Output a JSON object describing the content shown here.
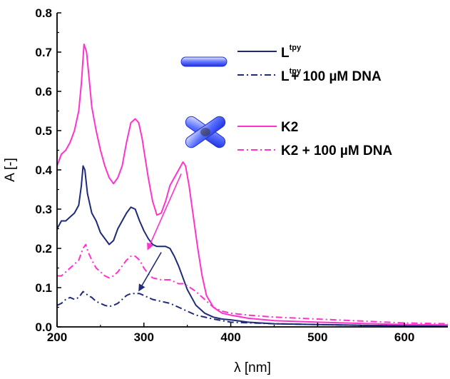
{
  "chart_data": {
    "type": "line",
    "xlabel": "λ [nm]",
    "ylabel": "A [-]",
    "xlim": [
      200,
      650
    ],
    "ylim": [
      0,
      0.8
    ],
    "xticks": [
      "200",
      "300",
      "400",
      "500",
      "600"
    ],
    "yticks": [
      "0.0",
      "0.1",
      "0.2",
      "0.3",
      "0.4",
      "0.5",
      "0.6",
      "0.7",
      "0.8"
    ],
    "grid": false,
    "legend_position": "top-right",
    "series": [
      {
        "name": "Ltpy",
        "name_base": "L",
        "name_sup": "tpy",
        "color": "#1f2a7a",
        "dash": "solid",
        "x": [
          200,
          205,
          210,
          215,
          220,
          225,
          228,
          230,
          232,
          235,
          240,
          245,
          250,
          260,
          265,
          270,
          275,
          280,
          285,
          290,
          295,
          300,
          305,
          310,
          315,
          320,
          325,
          330,
          335,
          340,
          345,
          350,
          360,
          370,
          380,
          390,
          400,
          420,
          450,
          500,
          550,
          600,
          650
        ],
        "y": [
          0.25,
          0.27,
          0.27,
          0.28,
          0.29,
          0.31,
          0.36,
          0.41,
          0.4,
          0.34,
          0.29,
          0.27,
          0.24,
          0.21,
          0.22,
          0.25,
          0.27,
          0.29,
          0.305,
          0.3,
          0.27,
          0.245,
          0.225,
          0.21,
          0.205,
          0.205,
          0.205,
          0.2,
          0.18,
          0.155,
          0.125,
          0.095,
          0.055,
          0.035,
          0.025,
          0.02,
          0.018,
          0.012,
          0.008,
          0.006,
          0.004,
          0.003,
          0.002
        ]
      },
      {
        "name": "Ltpy + 100 µM DNA",
        "name_base": "L",
        "name_sup": "tpy",
        "name_rest": "+ 100 µM DNA",
        "color": "#1f2a7a",
        "dash": "dashdot",
        "x": [
          200,
          205,
          210,
          215,
          220,
          225,
          230,
          233,
          236,
          240,
          245,
          250,
          255,
          260,
          265,
          270,
          275,
          280,
          285,
          290,
          295,
          300,
          305,
          310,
          320,
          330,
          340,
          350,
          360,
          380,
          400,
          450,
          500,
          550,
          600,
          650
        ],
        "y": [
          0.055,
          0.06,
          0.07,
          0.075,
          0.07,
          0.075,
          0.09,
          0.085,
          0.08,
          0.075,
          0.065,
          0.06,
          0.055,
          0.052,
          0.055,
          0.06,
          0.07,
          0.08,
          0.085,
          0.085,
          0.085,
          0.08,
          0.075,
          0.07,
          0.065,
          0.06,
          0.05,
          0.04,
          0.03,
          0.02,
          0.012,
          0.008,
          0.006,
          0.004,
          0.003,
          0.002
        ]
      },
      {
        "name": "K2",
        "color": "#ff33cc",
        "dash": "solid",
        "x": [
          200,
          205,
          210,
          215,
          220,
          225,
          228,
          231,
          234,
          237,
          240,
          245,
          250,
          255,
          260,
          265,
          270,
          275,
          280,
          285,
          290,
          294,
          298,
          300,
          305,
          310,
          315,
          320,
          325,
          330,
          335,
          340,
          345,
          348,
          352,
          357,
          362,
          367,
          372,
          380,
          390,
          400,
          420,
          450,
          500,
          550,
          600,
          650
        ],
        "y": [
          0.41,
          0.44,
          0.45,
          0.47,
          0.5,
          0.55,
          0.62,
          0.72,
          0.7,
          0.63,
          0.56,
          0.5,
          0.45,
          0.41,
          0.38,
          0.365,
          0.38,
          0.41,
          0.47,
          0.52,
          0.53,
          0.52,
          0.48,
          0.45,
          0.38,
          0.32,
          0.285,
          0.29,
          0.32,
          0.36,
          0.38,
          0.4,
          0.42,
          0.41,
          0.36,
          0.28,
          0.2,
          0.13,
          0.08,
          0.05,
          0.035,
          0.03,
          0.022,
          0.016,
          0.012,
          0.009,
          0.006,
          0.005
        ]
      },
      {
        "name": "K2 + 100 µM DNA",
        "color": "#ff33cc",
        "dash": "dashdot",
        "x": [
          200,
          205,
          210,
          215,
          220,
          225,
          230,
          233,
          236,
          240,
          245,
          250,
          255,
          260,
          265,
          270,
          275,
          280,
          285,
          290,
          295,
          300,
          305,
          310,
          320,
          330,
          340,
          345,
          350,
          360,
          370,
          380,
          390,
          400,
          420,
          450,
          500,
          550,
          600,
          650
        ],
        "y": [
          0.13,
          0.13,
          0.14,
          0.15,
          0.16,
          0.17,
          0.2,
          0.21,
          0.19,
          0.17,
          0.15,
          0.14,
          0.13,
          0.125,
          0.13,
          0.14,
          0.155,
          0.17,
          0.18,
          0.18,
          0.17,
          0.15,
          0.135,
          0.125,
          0.12,
          0.12,
          0.11,
          0.11,
          0.105,
          0.09,
          0.07,
          0.05,
          0.04,
          0.035,
          0.03,
          0.025,
          0.02,
          0.015,
          0.01,
          0.008
        ]
      }
    ],
    "arrows": [
      {
        "color": "#ff33cc",
        "from": [
          343,
          0.39
        ],
        "to": [
          305,
          0.2
        ]
      },
      {
        "color": "#1f2a7a",
        "from": [
          320,
          0.19
        ],
        "to": [
          295,
          0.095
        ]
      }
    ],
    "legend_icons": [
      "rod-shape-icon",
      "cross-shape-icon"
    ]
  }
}
